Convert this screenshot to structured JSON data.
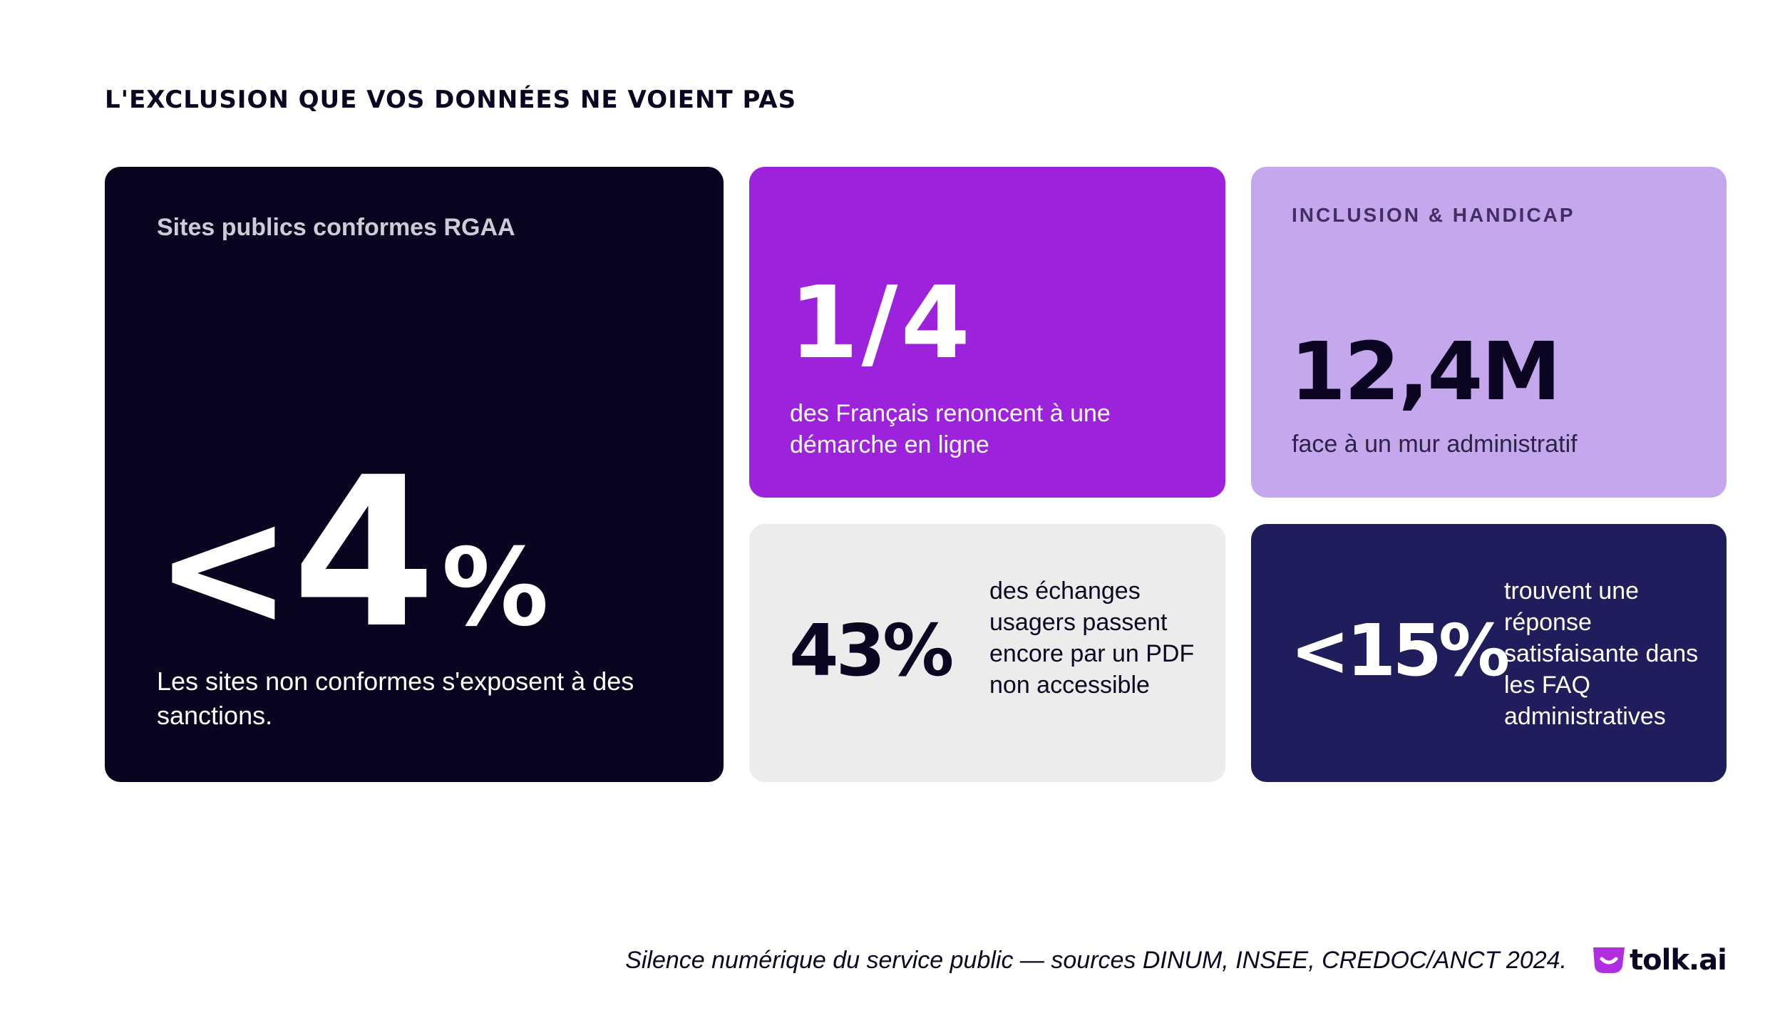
{
  "title": "L'EXCLUSION QUE VOS DONNÉES NE VOIENT PAS",
  "cards": {
    "rgaa": {
      "label": "Sites publics conformes RGAA",
      "value_prefix": "<",
      "value_number": "4",
      "value_suffix": "%",
      "description": "Les sites non conformes s'exposent à des sanctions.",
      "background": "#0b0420"
    },
    "quarter": {
      "value": "1/4",
      "description": "des Français renoncent à une démarche en ligne",
      "background": "#9c22db"
    },
    "handicap": {
      "label": "INCLUSION & HANDICAP",
      "value": "12,4M",
      "description": "face à un mur administratif",
      "background": "#c4a7ed"
    },
    "pdf": {
      "value": "43%",
      "description": "des échanges usagers passent encore par un PDF non accessible",
      "background": "#ececec"
    },
    "faq": {
      "value": "<15%",
      "description": "trouvent une réponse satisfaisante dans les FAQ administratives",
      "background": "#1f1d5b"
    }
  },
  "footer": {
    "note": "Silence numérique du service public — sources DINUM, INSEE, CREDOC/ANCT 2024.",
    "logo_text": "tolk.ai",
    "logo_color": "#b12de0"
  }
}
